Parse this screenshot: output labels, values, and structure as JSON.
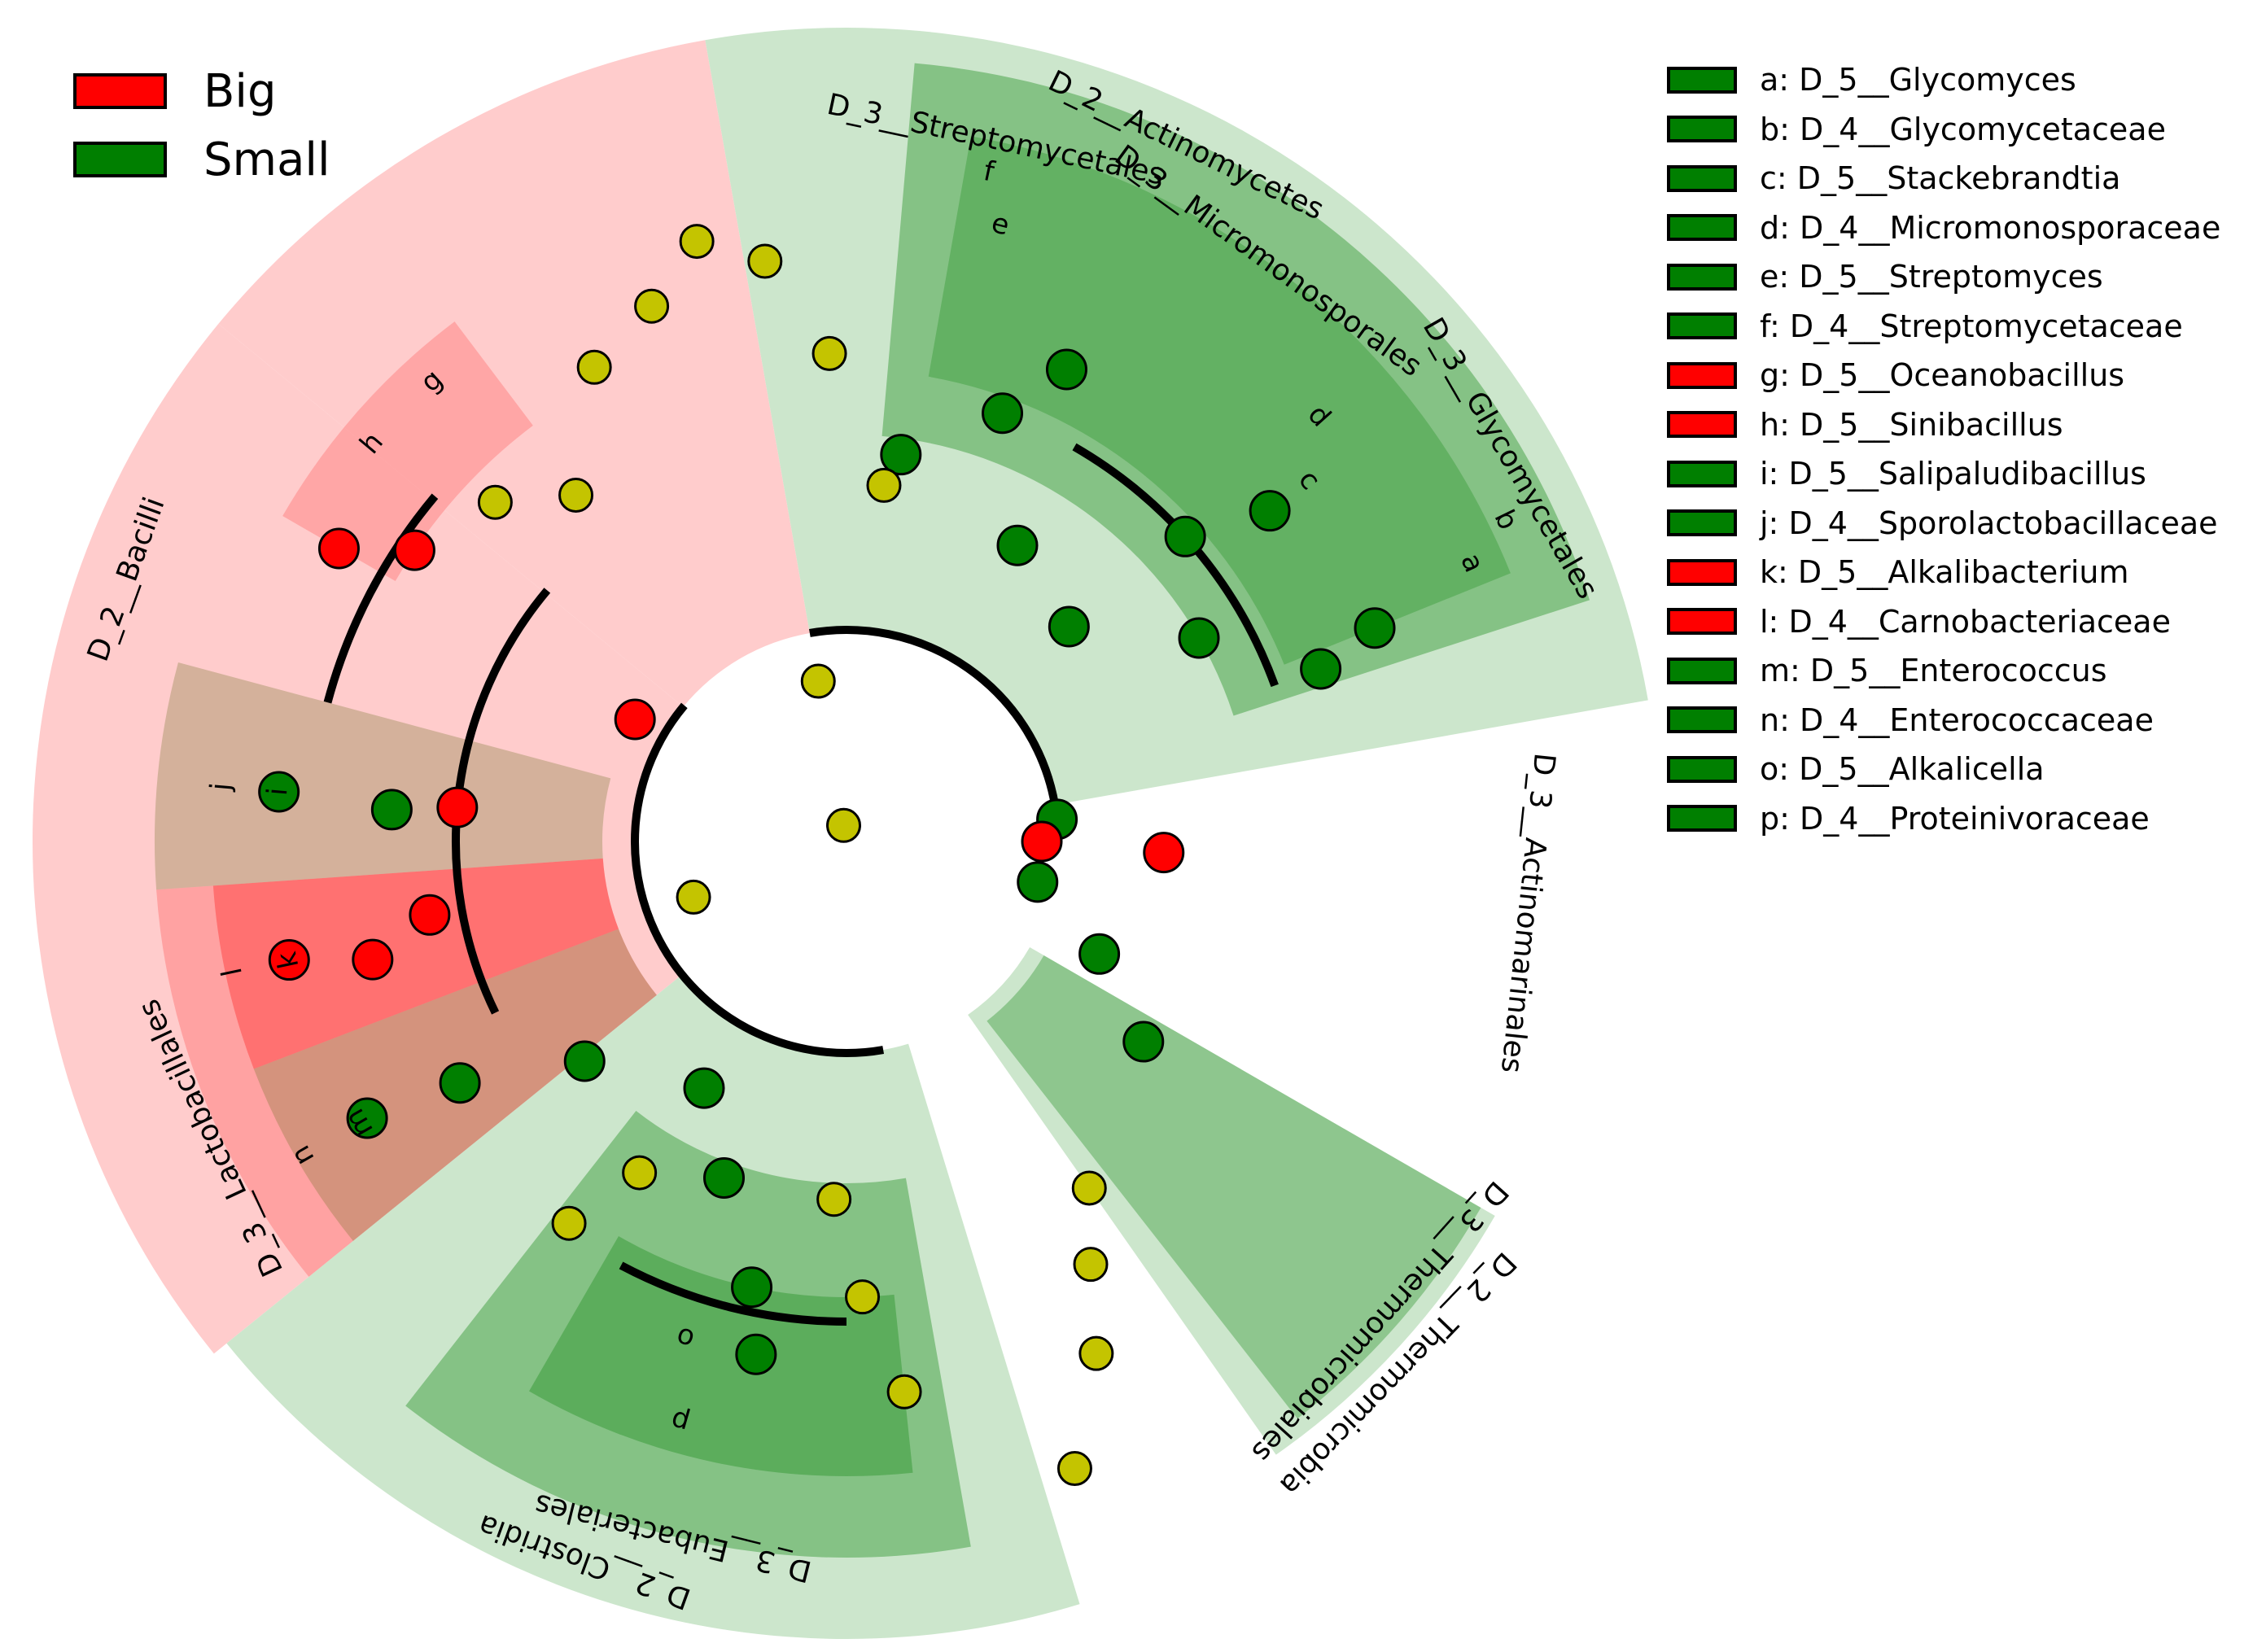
{
  "colors": {
    "big": "#ff0000",
    "small": "#007f00",
    "neutral_node": "#c4c400",
    "big_sector": "#ffcccc",
    "small_sector": "#cce6cc"
  },
  "legend": {
    "groups": [
      {
        "label": "Big",
        "color": "#ff0000"
      },
      {
        "label": "Small",
        "color": "#007f00"
      }
    ],
    "taxa": [
      {
        "letter": "a",
        "label": "a: D_5__Glycomyces",
        "group": "Small"
      },
      {
        "letter": "b",
        "label": "b: D_4__Glycomycetaceae",
        "group": "Small"
      },
      {
        "letter": "c",
        "label": "c: D_5__Stackebrandtia",
        "group": "Small"
      },
      {
        "letter": "d",
        "label": "d: D_4__Micromonosporaceae",
        "group": "Small"
      },
      {
        "letter": "e",
        "label": "e: D_5__Streptomyces",
        "group": "Small"
      },
      {
        "letter": "f",
        "label": "f: D_4__Streptomycetaceae",
        "group": "Small"
      },
      {
        "letter": "g",
        "label": "g: D_5__Oceanobacillus",
        "group": "Big"
      },
      {
        "letter": "h",
        "label": "h: D_5__Sinibacillus",
        "group": "Big"
      },
      {
        "letter": "i",
        "label": "i: D_5__Salipaludibacillus",
        "group": "Small"
      },
      {
        "letter": "j",
        "label": "j: D_4__Sporolactobacillaceae",
        "group": "Small"
      },
      {
        "letter": "k",
        "label": "k: D_5__Alkalibacterium",
        "group": "Big"
      },
      {
        "letter": "l",
        "label": "l: D_4__Carnobacteriaceae",
        "group": "Big"
      },
      {
        "letter": "m",
        "label": "m: D_5__Enterococcus",
        "group": "Small"
      },
      {
        "letter": "n",
        "label": "n: D_4__Enterococcaceae",
        "group": "Small"
      },
      {
        "letter": "o",
        "label": "o: D_5__Alkalicella",
        "group": "Small"
      },
      {
        "letter": "p",
        "label": "p: D_4__Proteinivoraceae",
        "group": "Small"
      }
    ]
  },
  "clades": [
    {
      "label": "D_2__Bacilli",
      "group": "Big",
      "level": "class"
    },
    {
      "label": "D_3__Lactobacillales",
      "group": "Big",
      "level": "order"
    },
    {
      "label": "D_2__Actinomycetes",
      "group": "Small",
      "level": "class"
    },
    {
      "label": "D_3__Streptomycetales",
      "group": "Small",
      "level": "order"
    },
    {
      "label": "D_3__Micromonosporales",
      "group": "Small",
      "level": "order"
    },
    {
      "label": "D_3__Glycomycetales",
      "group": "Small",
      "level": "order"
    },
    {
      "label": "D_3__Actinomarinales",
      "group": "Small",
      "level": "order"
    },
    {
      "label": "D_2__Clostridia",
      "group": "Small",
      "level": "class"
    },
    {
      "label": "D_3__Eubacteriales",
      "group": "Small",
      "level": "order"
    },
    {
      "label": "D_2__Thermomicrobia",
      "group": "Small",
      "level": "class"
    },
    {
      "label": "D_3__Thermomicrobiales",
      "group": "Small",
      "level": "order"
    }
  ]
}
